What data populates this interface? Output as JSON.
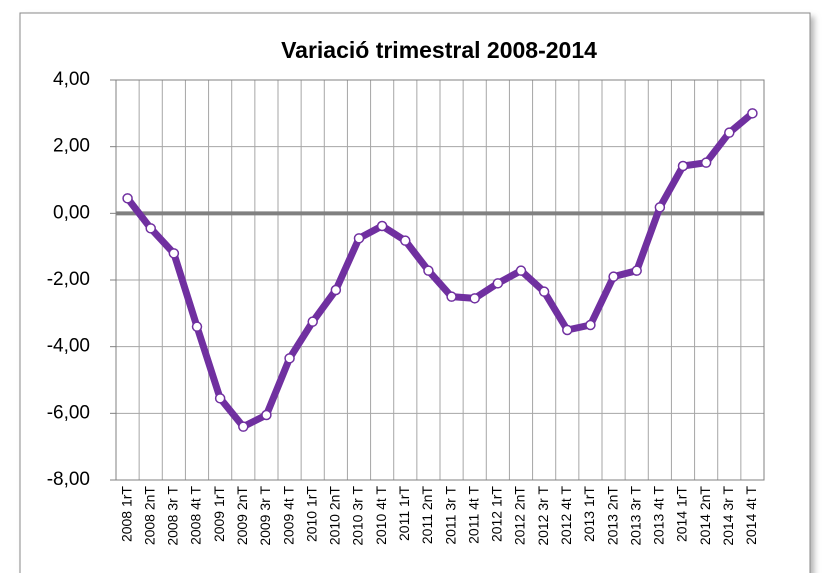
{
  "chart_data": {
    "type": "line",
    "title": "Variació trimestral 2008-2014",
    "categories": [
      "2008 1rT",
      "2008 2nT",
      "2008 3r T",
      "2008 4t T",
      "2009 1rT",
      "2009 2nT",
      "2009 3r T",
      "2009 4t T",
      "2010 1rT",
      "2010 2nT",
      "2010 3r T",
      "2010 4t T",
      "2011 1rT",
      "2011 2nT",
      "2011 3r T",
      "2011 4t T",
      "2012 1rT",
      "2012 2nT",
      "2012 3r T",
      "2012 4t T",
      "2013 1rT",
      "2013 2nT",
      "2013 3r T",
      "2013 4t T",
      "2014 1rT",
      "2014 2nT",
      "2014 3r T",
      "2014 4t T"
    ],
    "series": [
      {
        "color": "#7030a0",
        "values": [
          0.45,
          -0.45,
          -1.2,
          -3.4,
          -5.55,
          -6.4,
          -6.05,
          -4.35,
          -3.25,
          -2.3,
          -0.75,
          -0.38,
          -0.82,
          -1.72,
          -2.5,
          -2.55,
          -2.1,
          -1.72,
          -2.35,
          -3.5,
          -3.35,
          -1.9,
          -1.72,
          0.18,
          1.42,
          1.52,
          2.42,
          3.0
        ]
      }
    ],
    "ylim": [
      -8,
      4
    ],
    "yticks": [
      {
        "value": -8,
        "label": "-8,00"
      },
      {
        "value": -6,
        "label": "-6,00"
      },
      {
        "value": -4,
        "label": "-4,00"
      },
      {
        "value": -2,
        "label": "-2,00"
      },
      {
        "value": 0,
        "label": "0,00"
      },
      {
        "value": 2,
        "label": "2,00"
      },
      {
        "value": 4,
        "label": "4,00"
      }
    ],
    "grid": true
  }
}
